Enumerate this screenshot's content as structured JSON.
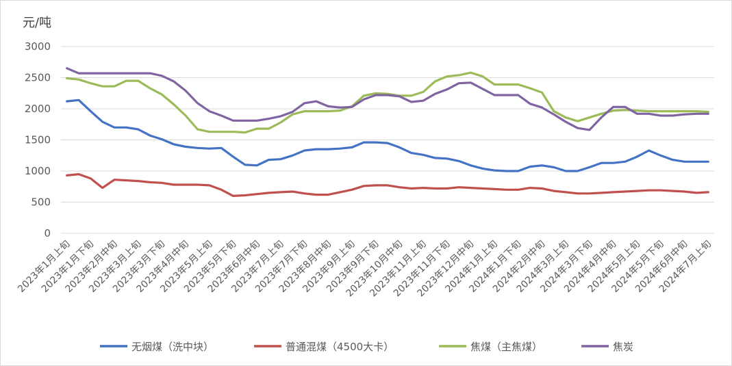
{
  "chart_data": {
    "type": "line",
    "unit_label": "元/吨",
    "ylim": [
      0,
      3000
    ],
    "y_ticks": [
      0,
      500,
      1000,
      1500,
      2000,
      2500,
      3000
    ],
    "grid": "horizontal",
    "legend_position": "bottom",
    "categories": [
      "2023年1月上旬",
      "2023年1月中旬",
      "2023年1月下旬",
      "2023年2月上旬",
      "2023年2月中旬",
      "2023年2月下旬",
      "2023年3月上旬",
      "2023年3月中旬",
      "2023年3月下旬",
      "2023年4月上旬",
      "2023年4月中旬",
      "2023年4月下旬",
      "2023年5月上旬",
      "2023年5月中旬",
      "2023年5月下旬",
      "2023年6月上旬",
      "2023年6月中旬",
      "2023年6月下旬",
      "2023年7月上旬",
      "2023年7月中旬",
      "2023年7月下旬",
      "2023年8月上旬",
      "2023年8月中旬",
      "2023年8月下旬",
      "2023年9月上旬",
      "2023年9月中旬",
      "2023年9月下旬",
      "2023年10月上旬",
      "2023年10月中旬",
      "2023年10月下旬",
      "2023年11月上旬",
      "2023年11月中旬",
      "2023年11月下旬",
      "2023年12月上旬",
      "2023年12月中旬",
      "2023年12月下旬",
      "2024年1月上旬",
      "2024年1月中旬",
      "2024年1月下旬",
      "2024年2月上旬",
      "2024年2月中旬",
      "2024年2月下旬",
      "2024年3月上旬",
      "2024年3月中旬",
      "2024年3月下旬",
      "2024年4月上旬",
      "2024年4月中旬",
      "2024年4月下旬",
      "2024年5月上旬",
      "2024年5月中旬",
      "2024年5月下旬",
      "2024年6月上旬",
      "2024年6月中旬",
      "2024年6月下旬",
      "2024年7月上旬"
    ],
    "series": [
      {
        "name": "无烟煤（洗中块）",
        "color": "#4472c4",
        "values": [
          2120,
          2140,
          1960,
          1790,
          1700,
          1700,
          1670,
          1570,
          1510,
          1430,
          1390,
          1370,
          1360,
          1370,
          1230,
          1100,
          1090,
          1180,
          1190,
          1250,
          1330,
          1350,
          1350,
          1360,
          1380,
          1460,
          1460,
          1450,
          1380,
          1290,
          1260,
          1210,
          1200,
          1160,
          1090,
          1040,
          1010,
          1000,
          1000,
          1070,
          1090,
          1060,
          1000,
          1000,
          1060,
          1130,
          1130,
          1150,
          1230,
          1330,
          1250,
          1180,
          1150,
          1150,
          1150
        ]
      },
      {
        "name": "普通混煤（4500大卡）",
        "color": "#c0504d",
        "values": [
          930,
          950,
          880,
          730,
          860,
          850,
          840,
          820,
          810,
          780,
          780,
          780,
          770,
          700,
          600,
          610,
          630,
          650,
          660,
          670,
          640,
          620,
          620,
          660,
          700,
          760,
          770,
          770,
          740,
          720,
          730,
          720,
          720,
          740,
          730,
          720,
          710,
          700,
          700,
          730,
          720,
          680,
          660,
          640,
          640,
          650,
          660,
          670,
          680,
          690,
          690,
          680,
          670,
          650,
          660
        ]
      },
      {
        "name": "焦煤（主焦煤）",
        "color": "#9bbb59",
        "values": [
          2490,
          2470,
          2410,
          2360,
          2360,
          2450,
          2450,
          2330,
          2230,
          2070,
          1890,
          1670,
          1630,
          1630,
          1630,
          1620,
          1680,
          1680,
          1780,
          1910,
          1960,
          1960,
          1960,
          1970,
          2040,
          2210,
          2250,
          2240,
          2210,
          2210,
          2270,
          2440,
          2520,
          2540,
          2580,
          2520,
          2390,
          2390,
          2390,
          2330,
          2260,
          1960,
          1860,
          1800,
          1860,
          1920,
          1970,
          1980,
          1970,
          1960,
          1960,
          1960,
          1960,
          1960,
          1950
        ]
      },
      {
        "name": "焦炭",
        "color": "#8064a2",
        "values": [
          2650,
          2570,
          2570,
          2570,
          2570,
          2570,
          2570,
          2570,
          2530,
          2440,
          2290,
          2090,
          1960,
          1890,
          1810,
          1810,
          1810,
          1840,
          1880,
          1950,
          2090,
          2120,
          2040,
          2020,
          2030,
          2150,
          2220,
          2220,
          2200,
          2110,
          2130,
          2240,
          2310,
          2410,
          2420,
          2320,
          2220,
          2220,
          2220,
          2080,
          2020,
          1910,
          1790,
          1690,
          1660,
          1860,
          2030,
          2030,
          1920,
          1920,
          1890,
          1890,
          1910,
          1920,
          1920
        ]
      }
    ]
  }
}
